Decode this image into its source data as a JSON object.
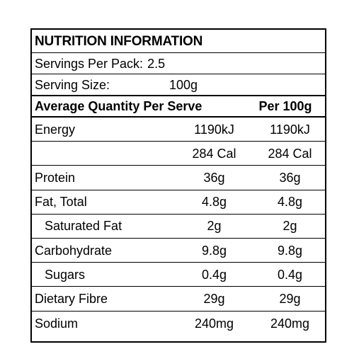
{
  "title": "NUTRITION INFORMATION",
  "servings": {
    "label": "Servings Per Pack:",
    "value": "2.5"
  },
  "serving_size": {
    "label": "Serving Size:",
    "value": "100g"
  },
  "header": {
    "per_serve": "Average Quantity Per Serve",
    "per_100g": "Per 100g"
  },
  "rows": [
    {
      "name": "Energy",
      "per_serve": "1190kJ",
      "per_100g": "1190kJ"
    },
    {
      "name": "",
      "per_serve": "284 Cal",
      "per_100g": "284 Cal"
    },
    {
      "name": "Protein",
      "per_serve": "36g",
      "per_100g": "36g"
    },
    {
      "name": "Fat, Total",
      "per_serve": "4.8g",
      "per_100g": "4.8g"
    },
    {
      "name": "Saturated Fat",
      "per_serve": "2g",
      "per_100g": "2g"
    },
    {
      "name": "Carbohydrate",
      "per_serve": "9.8g",
      "per_100g": "9.8g"
    },
    {
      "name": "Sugars",
      "per_serve": "0.4g",
      "per_100g": "0.4g"
    },
    {
      "name": "Dietary Fibre",
      "per_serve": "29g",
      "per_100g": "29g"
    },
    {
      "name": "Sodium",
      "per_serve": "240mg",
      "per_100g": "240mg"
    }
  ]
}
